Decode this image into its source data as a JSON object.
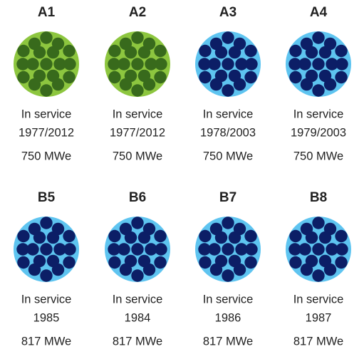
{
  "units": [
    {
      "name": "A1",
      "status": "In service",
      "years": "1977/2012",
      "power": "750 MWe",
      "color": "#8dc63f",
      "dot_color": "#386a1c"
    },
    {
      "name": "A2",
      "status": "In service",
      "years": "1977/2012",
      "power": "750 MWe",
      "color": "#8dc63f",
      "dot_color": "#386a1c"
    },
    {
      "name": "A3",
      "status": "In service",
      "years": "1978/2003",
      "power": "750 MWe",
      "color": "#5ec4f0",
      "dot_color": "#0c1e66"
    },
    {
      "name": "A4",
      "status": "In service",
      "years": "1979/2003",
      "power": "750 MWe",
      "color": "#5ec4f0",
      "dot_color": "#0c1e66"
    },
    {
      "name": "B5",
      "status": "In service",
      "years": "1985",
      "power": "817 MWe",
      "color": "#5ec4f0",
      "dot_color": "#0c1e66"
    },
    {
      "name": "B6",
      "status": "In service",
      "years": "1984",
      "power": "817 MWe",
      "color": "#5ec4f0",
      "dot_color": "#0c1e66"
    },
    {
      "name": "B7",
      "status": "In service",
      "years": "1986",
      "power": "817 MWe",
      "color": "#5ec4f0",
      "dot_color": "#0c1e66"
    },
    {
      "name": "B8",
      "status": "In service",
      "years": "1987",
      "power": "817 MWe",
      "color": "#5ec4f0",
      "dot_color": "#0c1e66"
    }
  ]
}
